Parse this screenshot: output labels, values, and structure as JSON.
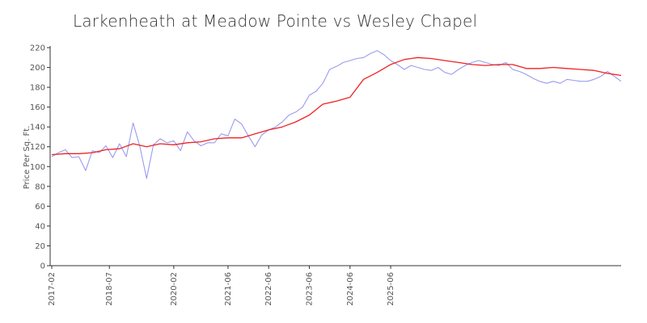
{
  "chart_data": {
    "type": "line",
    "title": "Larkenheath at Meadow Pointe vs Wesley Chapel",
    "xlabel": "",
    "ylabel": "Price Per Sq. Ft.",
    "ylim": [
      0,
      220
    ],
    "yticks": [
      0,
      20,
      40,
      60,
      80,
      100,
      120,
      140,
      160,
      180,
      200,
      220
    ],
    "xticks": [
      "2017-02",
      "2018-07",
      "2020-02",
      "2021-06",
      "2022-06",
      "2023-06",
      "2024-06",
      "2025-06"
    ],
    "grid": false,
    "legend": "none",
    "series": [
      {
        "color": "#9b9bef",
        "values": [
          [
            "2017-02",
            110
          ],
          [
            "2017-04",
            114
          ],
          [
            "2017-06",
            117
          ],
          [
            "2017-08",
            109
          ],
          [
            "2017-10",
            110
          ],
          [
            "2017-12",
            96
          ],
          [
            "2018-02",
            116
          ],
          [
            "2018-04",
            114
          ],
          [
            "2018-06",
            121
          ],
          [
            "2018-08",
            109
          ],
          [
            "2018-10",
            123
          ],
          [
            "2018-12",
            110
          ],
          [
            "2019-02",
            144
          ],
          [
            "2019-04",
            120
          ],
          [
            "2019-06",
            88
          ],
          [
            "2019-08",
            122
          ],
          [
            "2019-10",
            128
          ],
          [
            "2019-12",
            124
          ],
          [
            "2020-02",
            126
          ],
          [
            "2020-04",
            116
          ],
          [
            "2020-06",
            135
          ],
          [
            "2020-08",
            126
          ],
          [
            "2020-10",
            121
          ],
          [
            "2020-12",
            124
          ],
          [
            "2021-02",
            124
          ],
          [
            "2021-04",
            133
          ],
          [
            "2021-06",
            131
          ],
          [
            "2021-08",
            148
          ],
          [
            "2021-10",
            143
          ],
          [
            "2021-12",
            131
          ],
          [
            "2022-02",
            120
          ],
          [
            "2022-04",
            132
          ],
          [
            "2022-06",
            137
          ],
          [
            "2022-08",
            140
          ],
          [
            "2022-10",
            145
          ],
          [
            "2022-12",
            152
          ],
          [
            "2023-02",
            155
          ],
          [
            "2023-04",
            160
          ],
          [
            "2023-06",
            172
          ],
          [
            "2023-08",
            176
          ],
          [
            "2023-10",
            184
          ],
          [
            "2023-12",
            198
          ],
          [
            "2024-02",
            201
          ],
          [
            "2024-04",
            205
          ],
          [
            "2024-06",
            207
          ],
          [
            "2024-08",
            209
          ],
          [
            "2024-10",
            210
          ],
          [
            "2024-12",
            214
          ],
          [
            "2025-02",
            217
          ],
          [
            "2025-04",
            213
          ],
          [
            "2025-06",
            207
          ],
          [
            "2025-08",
            203
          ],
          [
            "2025-10",
            198
          ],
          [
            "2025-12",
            202
          ],
          [
            "2026-02",
            200
          ],
          [
            "2026-04",
            198
          ],
          [
            "2026-06",
            197
          ],
          [
            "2026-08",
            200
          ],
          [
            "2026-10",
            195
          ],
          [
            "2026-12",
            193
          ],
          [
            "2027-02",
            198
          ],
          [
            "2027-04",
            202
          ],
          [
            "2027-06",
            205
          ],
          [
            "2027-08",
            207
          ],
          [
            "2027-10",
            205
          ],
          [
            "2027-12",
            203
          ],
          [
            "2028-02",
            202
          ],
          [
            "2028-04",
            205
          ],
          [
            "2028-06",
            198
          ],
          [
            "2028-08",
            196
          ],
          [
            "2028-10",
            193
          ],
          [
            "2028-12",
            189
          ],
          [
            "2029-02",
            186
          ],
          [
            "2029-04",
            184
          ],
          [
            "2029-06",
            186
          ],
          [
            "2029-08",
            184
          ],
          [
            "2029-10",
            188
          ],
          [
            "2029-12",
            187
          ],
          [
            "2030-02",
            186
          ],
          [
            "2030-04",
            186
          ],
          [
            "2030-06",
            188
          ],
          [
            "2030-08",
            191
          ],
          [
            "2030-10",
            196
          ],
          [
            "2030-12",
            191
          ],
          [
            "2031-02",
            186
          ]
        ]
      },
      {
        "color": "#ee2222",
        "values": [
          [
            "2017-02",
            112
          ],
          [
            "2017-06",
            113
          ],
          [
            "2017-10",
            113
          ],
          [
            "2018-02",
            114
          ],
          [
            "2018-06",
            117
          ],
          [
            "2018-10",
            118
          ],
          [
            "2019-02",
            123
          ],
          [
            "2019-06",
            120
          ],
          [
            "2019-10",
            123
          ],
          [
            "2020-02",
            122
          ],
          [
            "2020-06",
            124
          ],
          [
            "2020-10",
            125
          ],
          [
            "2021-02",
            128
          ],
          [
            "2021-06",
            129
          ],
          [
            "2021-10",
            129
          ],
          [
            "2022-02",
            133
          ],
          [
            "2022-06",
            137
          ],
          [
            "2022-10",
            140
          ],
          [
            "2023-02",
            145
          ],
          [
            "2023-06",
            152
          ],
          [
            "2023-10",
            163
          ],
          [
            "2024-02",
            166
          ],
          [
            "2024-06",
            170
          ],
          [
            "2024-10",
            188
          ],
          [
            "2025-02",
            195
          ],
          [
            "2025-06",
            203
          ],
          [
            "2025-10",
            208
          ],
          [
            "2026-02",
            210
          ],
          [
            "2026-06",
            209
          ],
          [
            "2026-10",
            207
          ],
          [
            "2027-02",
            205
          ],
          [
            "2027-06",
            203
          ],
          [
            "2027-10",
            202
          ],
          [
            "2028-02",
            203
          ],
          [
            "2028-06",
            203
          ],
          [
            "2028-10",
            199
          ],
          [
            "2029-02",
            199
          ],
          [
            "2029-06",
            200
          ],
          [
            "2029-10",
            199
          ],
          [
            "2030-02",
            198
          ],
          [
            "2030-06",
            197
          ],
          [
            "2030-10",
            194
          ],
          [
            "2031-02",
            192
          ]
        ]
      }
    ]
  }
}
